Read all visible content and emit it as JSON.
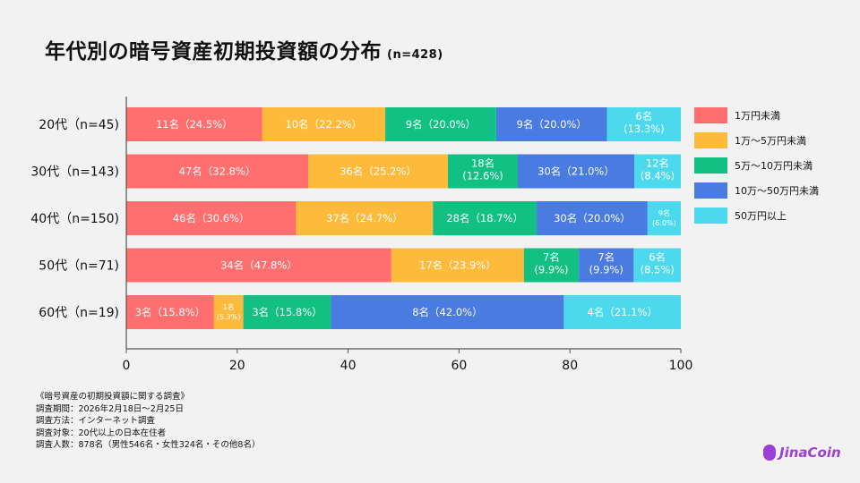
{
  "chart_data": {
    "type": "bar",
    "orientation": "horizontal",
    "stacked": true,
    "title": "年代別の暗号資産初期投資額の分布",
    "subtitle": "(n=428)",
    "categories": [
      "20代（n=45)",
      "30代（n=143)",
      "40代（n=150)",
      "50代（n=71)",
      "60代（n=19)"
    ],
    "xlim": [
      0,
      100
    ],
    "xticks": [
      0,
      20,
      40,
      60,
      80,
      100
    ],
    "grid": false,
    "legend_position": "right",
    "series": [
      {
        "name": "1万円未満",
        "color": "#FF6F6F",
        "values": [
          24.5,
          32.8,
          30.6,
          47.8,
          15.8
        ],
        "counts": [
          11,
          47,
          46,
          34,
          3
        ]
      },
      {
        "name": "1万〜5万円未満",
        "color": "#FDBA3B",
        "values": [
          22.2,
          25.2,
          24.7,
          23.9,
          5.3
        ],
        "counts": [
          10,
          36,
          37,
          17,
          1
        ]
      },
      {
        "name": "5万〜10万円未満",
        "color": "#12C083",
        "values": [
          20.0,
          12.6,
          18.7,
          9.9,
          15.8
        ],
        "counts": [
          9,
          18,
          28,
          7,
          3
        ]
      },
      {
        "name": "10万〜50万円未満",
        "color": "#4A7BE0",
        "values": [
          20.0,
          21.0,
          20.0,
          9.9,
          42.0
        ],
        "counts": [
          9,
          30,
          30,
          7,
          8
        ]
      },
      {
        "name": "50万円以上",
        "color": "#4CD9EE",
        "values": [
          13.3,
          8.4,
          6.0,
          8.5,
          21.1
        ],
        "counts": [
          6,
          12,
          9,
          6,
          4
        ]
      }
    ],
    "data_labels": [
      [
        [
          "11名（24.5%）"
        ],
        [
          "10名（22.2%）"
        ],
        [
          "9名（20.0%）"
        ],
        [
          "9名（20.0%）"
        ],
        [
          "6名",
          "(13.3%)"
        ]
      ],
      [
        [
          "47名（32.8%）"
        ],
        [
          "36名（25.2%）"
        ],
        [
          "18名",
          "(12.6%)"
        ],
        [
          "30名（21.0%）"
        ],
        [
          "12名",
          "(8.4%)"
        ]
      ],
      [
        [
          "46名（30.6%）"
        ],
        [
          "37名（24.7%）"
        ],
        [
          "28名（18.7%）"
        ],
        [
          "30名（20.0%）"
        ],
        [
          "9名",
          "(6.0%)"
        ]
      ],
      [
        [
          "34名（47.8%）"
        ],
        [
          "17名（23.9%）"
        ],
        [
          "7名",
          "(9.9%)"
        ],
        [
          "7名",
          "(9.9%)"
        ],
        [
          "6名",
          "(8.5%)"
        ]
      ],
      [
        [
          "3名（15.8%）"
        ],
        [
          "1名",
          "(5.3%)"
        ],
        [
          "3名（15.8%）"
        ],
        [
          "8名（42.0%）"
        ],
        [
          "4名（21.1%）"
        ]
      ]
    ]
  },
  "notes": [
    "《暗号資産の初期投資額に関する調査》",
    "調査期間：2026年2月18日〜2月25日",
    "調査方法：インターネット調査",
    "調査対象：20代以上の日本在住者",
    "調査人数：878名（男性546名・女性324名・その他8名）"
  ],
  "logo": {
    "text": "JinaCoin",
    "color": "#9b3fd6"
  }
}
